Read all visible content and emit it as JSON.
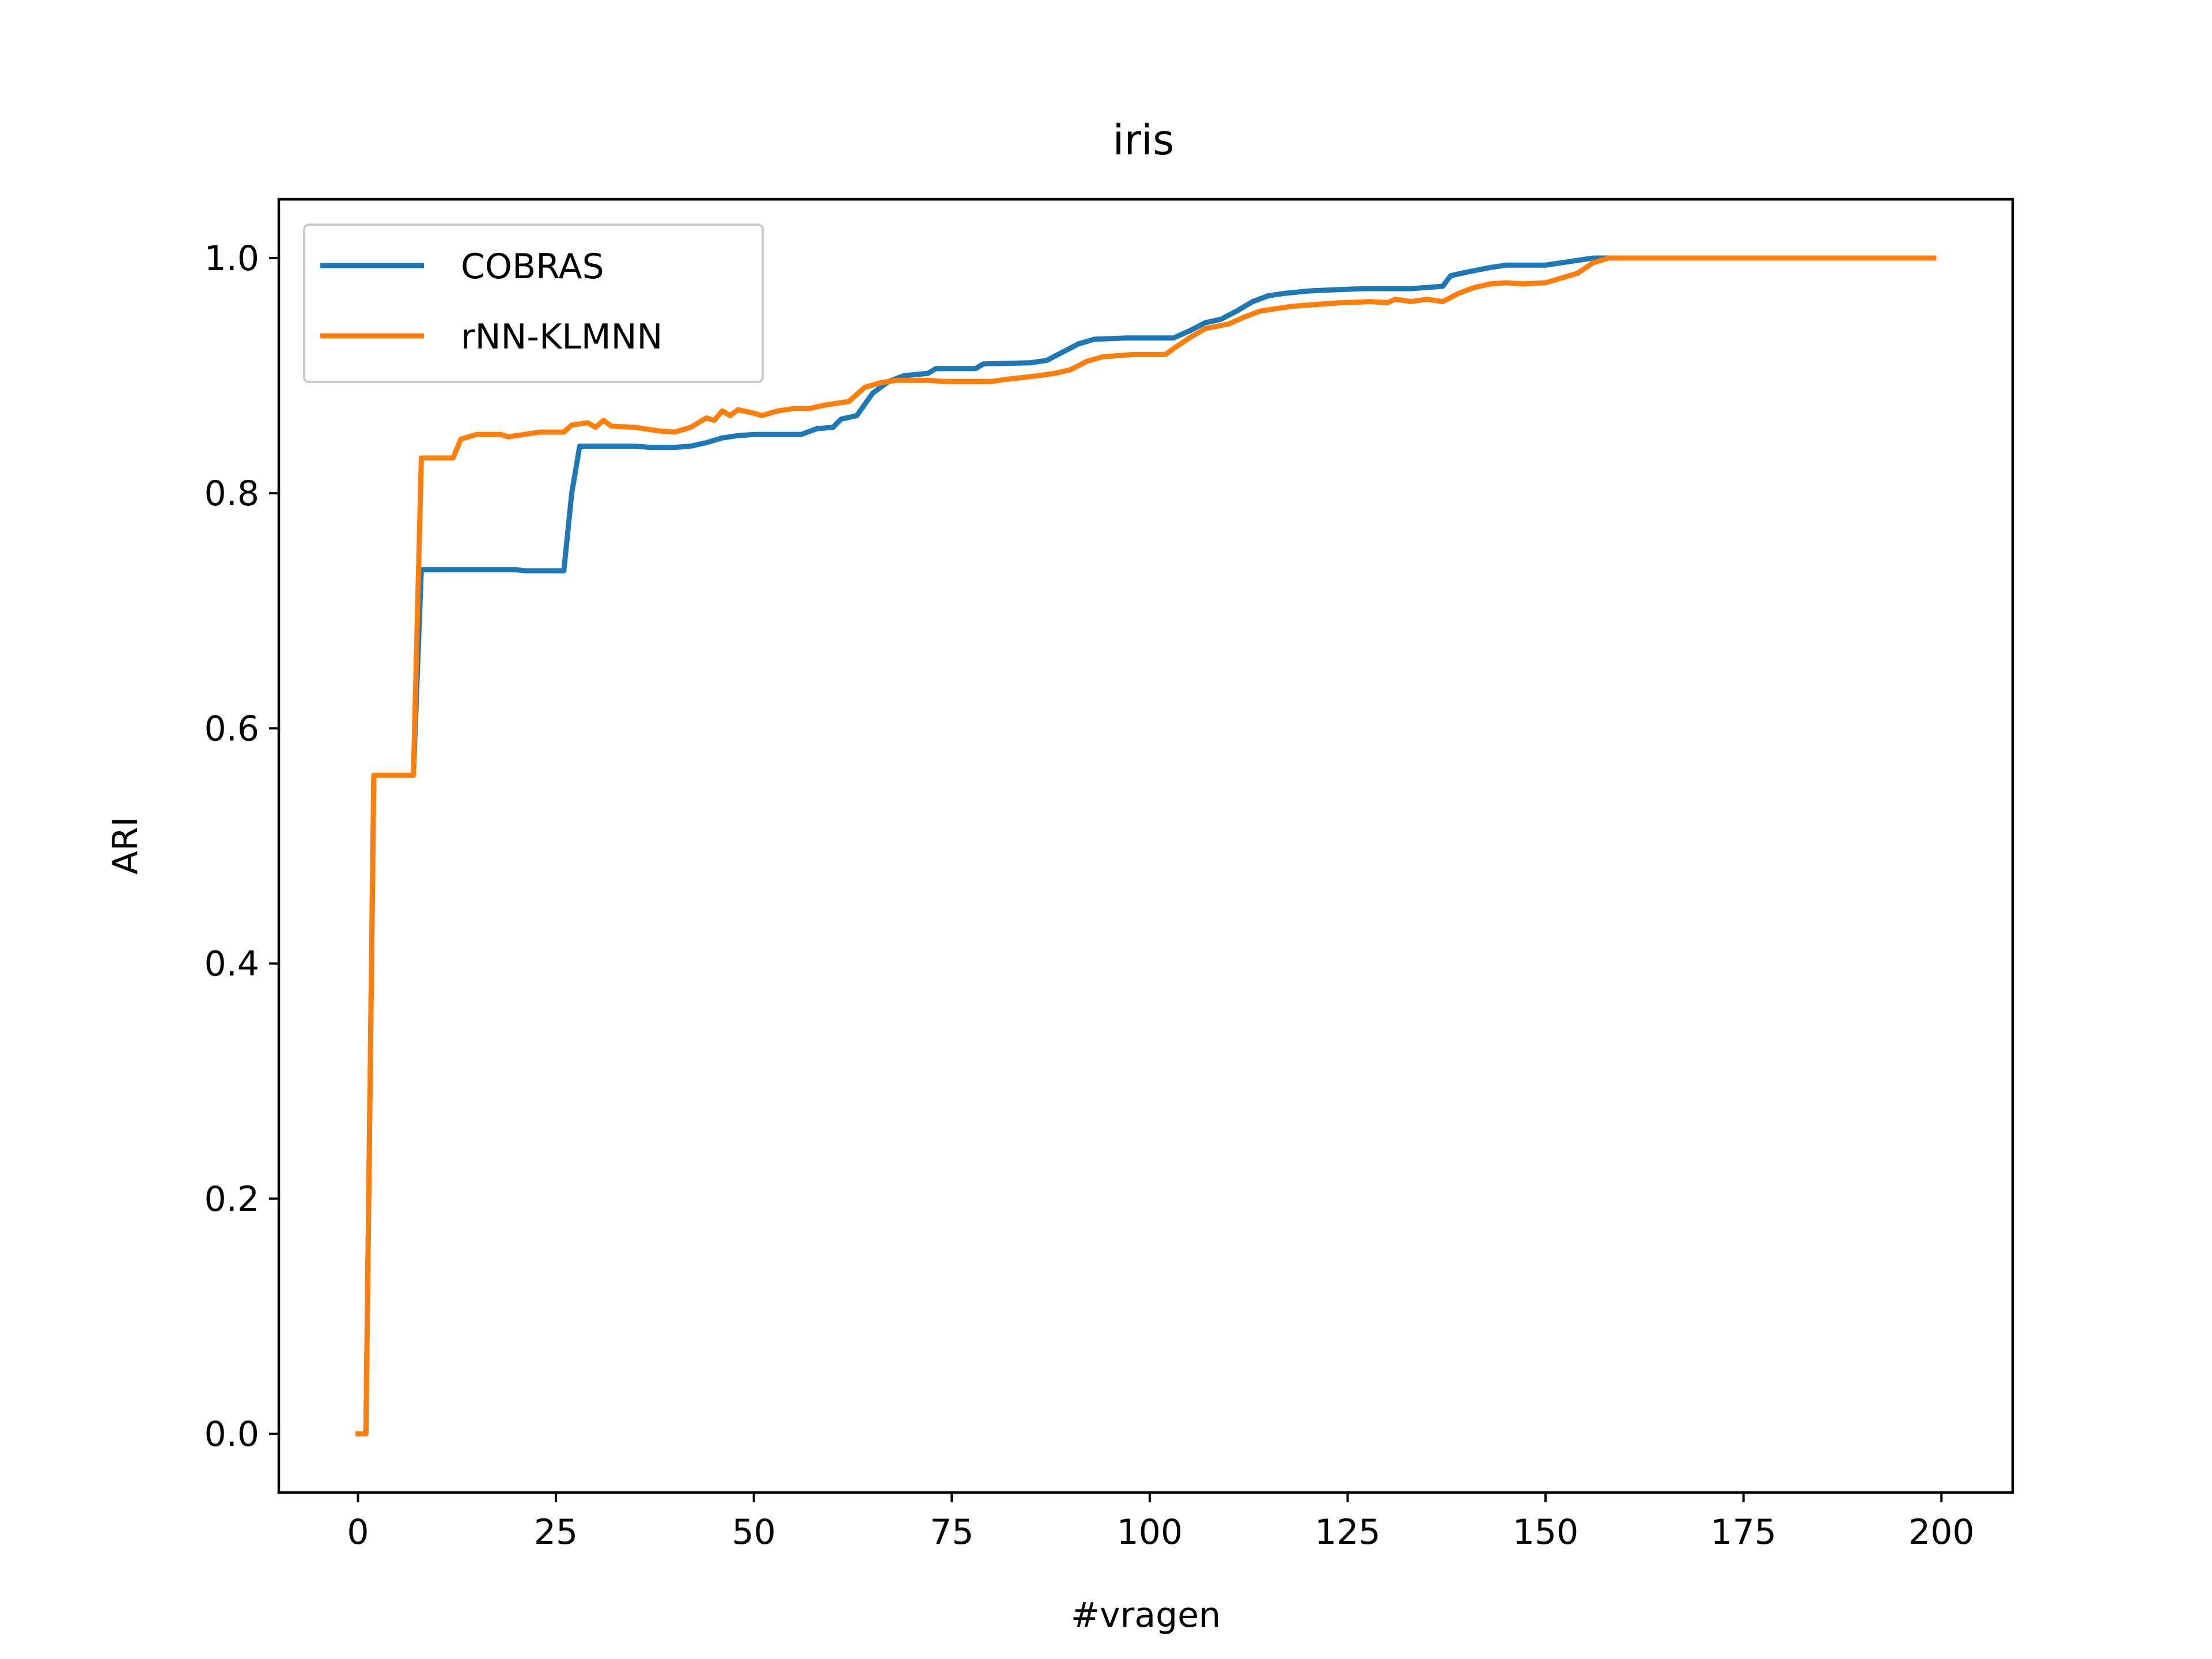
{
  "chart_data": {
    "type": "line",
    "title": "iris",
    "xlabel": "#vragen",
    "ylabel": "ARI",
    "xlim": [
      -10,
      209
    ],
    "ylim": [
      -0.05,
      1.05
    ],
    "xticks": [
      0,
      25,
      50,
      75,
      100,
      125,
      150,
      175,
      200
    ],
    "yticks": [
      0.0,
      0.2,
      0.4,
      0.6,
      0.8,
      1.0
    ],
    "xtick_labels": [
      "0",
      "25",
      "50",
      "75",
      "100",
      "125",
      "150",
      "175",
      "200"
    ],
    "ytick_labels": [
      "0.0",
      "0.2",
      "0.4",
      "0.6",
      "0.8",
      "1.0"
    ],
    "grid": false,
    "legend_position": "top-left",
    "series": [
      {
        "name": "COBRAS",
        "color": "#1f77b4",
        "points": [
          [
            0,
            0.0
          ],
          [
            1,
            0.0
          ],
          [
            2,
            0.56
          ],
          [
            7,
            0.56
          ],
          [
            8,
            0.735
          ],
          [
            20,
            0.735
          ],
          [
            21,
            0.734
          ],
          [
            26,
            0.734
          ],
          [
            27,
            0.8
          ],
          [
            28,
            0.84
          ],
          [
            35,
            0.84
          ],
          [
            37,
            0.839
          ],
          [
            40,
            0.839
          ],
          [
            42,
            0.84
          ],
          [
            44,
            0.843
          ],
          [
            46,
            0.847
          ],
          [
            48,
            0.849
          ],
          [
            50,
            0.85
          ],
          [
            56,
            0.85
          ],
          [
            58,
            0.855
          ],
          [
            60,
            0.856
          ],
          [
            61,
            0.863
          ],
          [
            63,
            0.866
          ],
          [
            65,
            0.885
          ],
          [
            67,
            0.895
          ],
          [
            69,
            0.9
          ],
          [
            72,
            0.902
          ],
          [
            73,
            0.906
          ],
          [
            78,
            0.906
          ],
          [
            79,
            0.91
          ],
          [
            85,
            0.911
          ],
          [
            87,
            0.913
          ],
          [
            89,
            0.92
          ],
          [
            91,
            0.927
          ],
          [
            93,
            0.931
          ],
          [
            97,
            0.932
          ],
          [
            103,
            0.932
          ],
          [
            105,
            0.938
          ],
          [
            107,
            0.945
          ],
          [
            109,
            0.948
          ],
          [
            111,
            0.955
          ],
          [
            113,
            0.963
          ],
          [
            115,
            0.968
          ],
          [
            117,
            0.97
          ],
          [
            120,
            0.972
          ],
          [
            123,
            0.973
          ],
          [
            127,
            0.974
          ],
          [
            133,
            0.974
          ],
          [
            137,
            0.976
          ],
          [
            138,
            0.985
          ],
          [
            140,
            0.988
          ],
          [
            143,
            0.992
          ],
          [
            145,
            0.994
          ],
          [
            150,
            0.994
          ],
          [
            152,
            0.996
          ],
          [
            154,
            0.998
          ],
          [
            156,
            1.0
          ],
          [
            199,
            1.0
          ]
        ]
      },
      {
        "name": "rNN-KLMNN",
        "color": "#ff7f0e",
        "points": [
          [
            0,
            0.0
          ],
          [
            1,
            0.0
          ],
          [
            2,
            0.56
          ],
          [
            7,
            0.56
          ],
          [
            8,
            0.83
          ],
          [
            12,
            0.83
          ],
          [
            13,
            0.846
          ],
          [
            15,
            0.85
          ],
          [
            18,
            0.85
          ],
          [
            19,
            0.848
          ],
          [
            21,
            0.85
          ],
          [
            23,
            0.852
          ],
          [
            26,
            0.852
          ],
          [
            27,
            0.858
          ],
          [
            29,
            0.86
          ],
          [
            30,
            0.856
          ],
          [
            31,
            0.862
          ],
          [
            32,
            0.857
          ],
          [
            35,
            0.856
          ],
          [
            38,
            0.853
          ],
          [
            40,
            0.852
          ],
          [
            42,
            0.856
          ],
          [
            44,
            0.864
          ],
          [
            45,
            0.862
          ],
          [
            46,
            0.87
          ],
          [
            47,
            0.866
          ],
          [
            48,
            0.871
          ],
          [
            50,
            0.868
          ],
          [
            51,
            0.866
          ],
          [
            53,
            0.87
          ],
          [
            55,
            0.872
          ],
          [
            57,
            0.872
          ],
          [
            59,
            0.875
          ],
          [
            62,
            0.878
          ],
          [
            64,
            0.89
          ],
          [
            66,
            0.894
          ],
          [
            68,
            0.896
          ],
          [
            72,
            0.896
          ],
          [
            74,
            0.895
          ],
          [
            80,
            0.895
          ],
          [
            82,
            0.897
          ],
          [
            86,
            0.9
          ],
          [
            88,
            0.902
          ],
          [
            90,
            0.905
          ],
          [
            92,
            0.912
          ],
          [
            94,
            0.916
          ],
          [
            96,
            0.917
          ],
          [
            98,
            0.918
          ],
          [
            102,
            0.918
          ],
          [
            103,
            0.923
          ],
          [
            105,
            0.932
          ],
          [
            107,
            0.94
          ],
          [
            110,
            0.944
          ],
          [
            112,
            0.95
          ],
          [
            114,
            0.955
          ],
          [
            116,
            0.957
          ],
          [
            118,
            0.959
          ],
          [
            120,
            0.96
          ],
          [
            124,
            0.962
          ],
          [
            128,
            0.963
          ],
          [
            130,
            0.962
          ],
          [
            131,
            0.965
          ],
          [
            133,
            0.963
          ],
          [
            135,
            0.965
          ],
          [
            137,
            0.963
          ],
          [
            139,
            0.97
          ],
          [
            141,
            0.975
          ],
          [
            143,
            0.978
          ],
          [
            145,
            0.979
          ],
          [
            147,
            0.978
          ],
          [
            150,
            0.979
          ],
          [
            152,
            0.983
          ],
          [
            154,
            0.987
          ],
          [
            156,
            0.996
          ],
          [
            158,
            1.0
          ],
          [
            199,
            1.0
          ]
        ]
      }
    ]
  }
}
